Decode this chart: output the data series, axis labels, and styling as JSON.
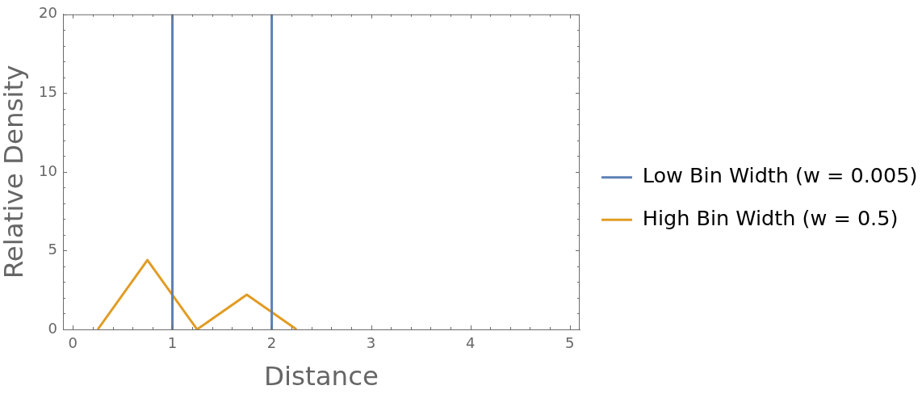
{
  "chart_data": {
    "type": "line",
    "xlabel": "Distance",
    "ylabel": "Relative Density",
    "xlim": [
      -0.1,
      5.1
    ],
    "ylim": [
      0,
      20
    ],
    "xticks": [
      0,
      {
        "value": 0.2,
        "label": null
      },
      {
        "value": 0.4,
        "label": null
      },
      {
        "value": 0.6,
        "label": null
      },
      {
        "value": 0.8,
        "label": null
      },
      1,
      {
        "value": 1.2,
        "label": null
      },
      {
        "value": 1.4,
        "label": null
      },
      {
        "value": 1.6,
        "label": null
      },
      {
        "value": 1.8,
        "label": null
      },
      2,
      {
        "value": 2.2,
        "label": null
      },
      {
        "value": 2.4,
        "label": null
      },
      {
        "value": 2.6,
        "label": null
      },
      {
        "value": 2.8,
        "label": null
      },
      3,
      {
        "value": 3.2,
        "label": null
      },
      {
        "value": 3.4,
        "label": null
      },
      {
        "value": 3.6,
        "label": null
      },
      {
        "value": 3.8,
        "label": null
      },
      4,
      {
        "value": 4.2,
        "label": null
      },
      {
        "value": 4.4,
        "label": null
      },
      {
        "value": 4.6,
        "label": null
      },
      {
        "value": 4.8,
        "label": null
      },
      5
    ],
    "yticks": [
      0,
      {
        "value": 1,
        "label": null
      },
      {
        "value": 2,
        "label": null
      },
      {
        "value": 3,
        "label": null
      },
      {
        "value": 4,
        "label": null
      },
      5,
      {
        "value": 6,
        "label": null
      },
      {
        "value": 7,
        "label": null
      },
      {
        "value": 8,
        "label": null
      },
      {
        "value": 9,
        "label": null
      },
      10,
      {
        "value": 11,
        "label": null
      },
      {
        "value": 12,
        "label": null
      },
      {
        "value": 13,
        "label": null
      },
      {
        "value": 14,
        "label": null
      },
      15,
      {
        "value": 16,
        "label": null
      },
      {
        "value": 17,
        "label": null
      },
      {
        "value": 18,
        "label": null
      },
      {
        "value": 19,
        "label": null
      },
      20
    ],
    "grid": false,
    "legend": "right",
    "marker": "none",
    "line_style": "solid",
    "series": [
      {
        "name": "Low Bin Width (w = 0.005)",
        "color": "#5e81b5",
        "x": [
          0.9975,
          1,
          1.0025,
          1.5,
          1.9975,
          2,
          2.0025
        ],
        "values": [
          0,
          20,
          0,
          null,
          0,
          20,
          0
        ]
      },
      {
        "name": "High Bin Width (w = 0.5)",
        "color": "#e19c24",
        "x": [
          0.25,
          0.75,
          1.25,
          1.75,
          2.25
        ],
        "values": [
          0,
          4.4,
          0,
          2.2,
          0
        ]
      }
    ]
  }
}
